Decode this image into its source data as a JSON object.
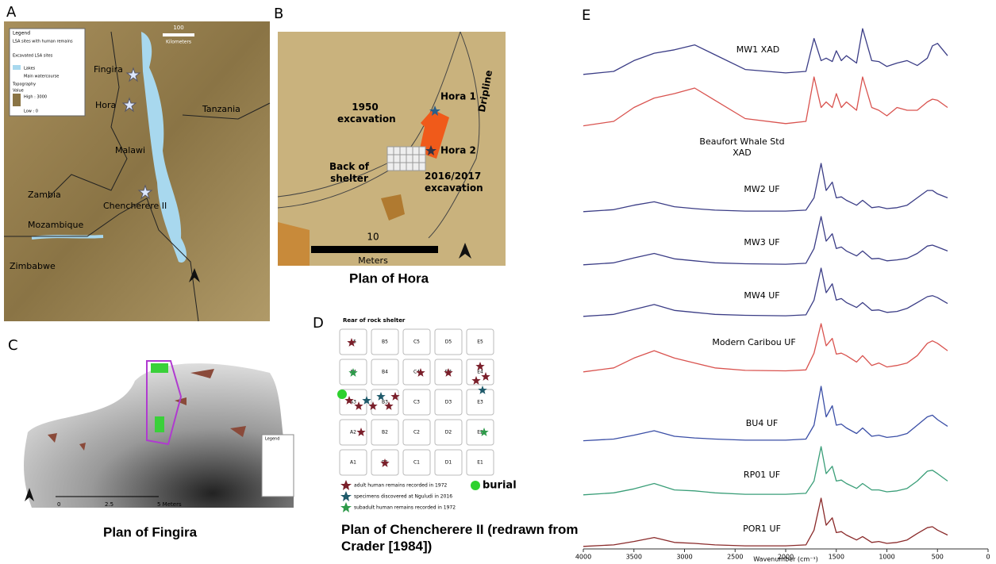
{
  "panels": {
    "A": {
      "letter": "A",
      "legend": [
        "Legend",
        "LSA sites with human remains",
        "Excavated LSA sites",
        "Lakes",
        "Main watercourse",
        "Topography",
        "Value",
        "High : 3000",
        "Low : 0"
      ],
      "scale": [
        "100",
        "Kilometers"
      ],
      "places": [
        "Fingira",
        "Hora",
        "Tanzania",
        "Malawi",
        "Zambia",
        "Chencherere II",
        "Mozambique",
        "Zimbabwe"
      ]
    },
    "B": {
      "letter": "B",
      "labels": [
        "Hora 1",
        "1950 excavation",
        "Dripline",
        "Hora 2",
        "Back of shelter",
        "2016/2017 excavation"
      ],
      "scale": [
        "10",
        "Meters"
      ],
      "caption": "Plan of Hora"
    },
    "C": {
      "letter": "C",
      "legend": "Legend",
      "scale": [
        "0",
        "2.5",
        "5 Meters"
      ],
      "caption": "Plan of Fingira"
    },
    "D": {
      "letter": "D",
      "header": "Rear of rock shelter",
      "grid": [
        [
          "A5",
          "B5",
          "C5",
          "D5",
          "E5"
        ],
        [
          "A4",
          "B4",
          "C4",
          "D4",
          "E4"
        ],
        [
          "A3",
          "B3",
          "C3",
          "D3",
          "E3"
        ],
        [
          "A2",
          "B2",
          "C2",
          "D2",
          "E2"
        ],
        [
          "A1",
          "B1",
          "C1",
          "D1",
          "E1"
        ]
      ],
      "legend": [
        "adult human remains recorded in 1972",
        "specimens discovered at Nguludi in 2016",
        "subadult human remains recorded in 1972"
      ],
      "burial": "burial",
      "caption": "Plan of Chencherere II (redrawn from Crader [1984])"
    },
    "E": {
      "letter": "E"
    }
  },
  "chart_data": {
    "type": "line",
    "xlabel": "Wavenumber (cm⁻¹)",
    "xlim": [
      4000,
      0
    ],
    "xticks": [
      4000,
      3500,
      3000,
      2500,
      2000,
      1500,
      1000,
      500,
      0
    ],
    "x": [
      4000,
      3700,
      3500,
      3300,
      3100,
      2900,
      2700,
      2400,
      2000,
      1800,
      1720,
      1650,
      1600,
      1540,
      1500,
      1450,
      1400,
      1300,
      1240,
      1150,
      1080,
      1000,
      900,
      800,
      700,
      600,
      550,
      500,
      400
    ],
    "series": [
      {
        "name": "MW1 XAD",
        "color": "#3b3d86",
        "values": [
          0.02,
          0.08,
          0.3,
          0.45,
          0.52,
          0.62,
          0.42,
          0.12,
          0.05,
          0.08,
          0.75,
          0.3,
          0.35,
          0.28,
          0.5,
          0.3,
          0.4,
          0.25,
          0.95,
          0.3,
          0.28,
          0.18,
          0.25,
          0.3,
          0.2,
          0.35,
          0.6,
          0.65,
          0.4
        ]
      },
      {
        "name": "Beaufort Whale Std XAD",
        "color": "#d9534f",
        "values": [
          0.02,
          0.1,
          0.35,
          0.52,
          0.6,
          0.7,
          0.48,
          0.15,
          0.06,
          0.1,
          0.9,
          0.35,
          0.45,
          0.35,
          0.6,
          0.35,
          0.45,
          0.3,
          0.9,
          0.35,
          0.3,
          0.2,
          0.35,
          0.3,
          0.3,
          0.45,
          0.5,
          0.48,
          0.35
        ]
      },
      {
        "name": "MW2 UF",
        "color": "#3b3d86",
        "values": [
          0.02,
          0.06,
          0.15,
          0.22,
          0.12,
          0.08,
          0.05,
          0.03,
          0.03,
          0.05,
          0.3,
          1.0,
          0.45,
          0.62,
          0.3,
          0.32,
          0.25,
          0.15,
          0.25,
          0.1,
          0.12,
          0.08,
          0.1,
          0.15,
          0.3,
          0.45,
          0.45,
          0.38,
          0.3
        ]
      },
      {
        "name": "MW3 UF",
        "color": "#3b3d86",
        "values": [
          0.02,
          0.06,
          0.16,
          0.25,
          0.14,
          0.1,
          0.06,
          0.04,
          0.03,
          0.05,
          0.35,
          1.0,
          0.5,
          0.65,
          0.35,
          0.38,
          0.3,
          0.2,
          0.3,
          0.14,
          0.15,
          0.1,
          0.12,
          0.15,
          0.25,
          0.4,
          0.42,
          0.38,
          0.3
        ]
      },
      {
        "name": "MW4 UF",
        "color": "#3b3d86",
        "values": [
          0.02,
          0.06,
          0.16,
          0.26,
          0.14,
          0.1,
          0.06,
          0.04,
          0.03,
          0.05,
          0.35,
          1.0,
          0.5,
          0.68,
          0.35,
          0.38,
          0.3,
          0.2,
          0.3,
          0.14,
          0.15,
          0.1,
          0.12,
          0.18,
          0.3,
          0.42,
          0.44,
          0.4,
          0.28
        ]
      },
      {
        "name": "Modern Caribou UF",
        "color": "#d9534f",
        "values": [
          0.02,
          0.1,
          0.3,
          0.45,
          0.3,
          0.2,
          0.1,
          0.05,
          0.04,
          0.06,
          0.4,
          1.0,
          0.55,
          0.7,
          0.38,
          0.4,
          0.35,
          0.22,
          0.35,
          0.15,
          0.2,
          0.12,
          0.15,
          0.2,
          0.35,
          0.6,
          0.65,
          0.6,
          0.45
        ]
      },
      {
        "name": "BU4 UF",
        "color": "#3a4ea6",
        "values": [
          0.02,
          0.05,
          0.12,
          0.2,
          0.1,
          0.07,
          0.05,
          0.03,
          0.03,
          0.05,
          0.3,
          1.0,
          0.45,
          0.65,
          0.3,
          0.32,
          0.25,
          0.15,
          0.25,
          0.1,
          0.12,
          0.08,
          0.1,
          0.15,
          0.3,
          0.45,
          0.48,
          0.4,
          0.28
        ]
      },
      {
        "name": "RP01 UF",
        "color": "#3a9e78",
        "values": [
          0.02,
          0.06,
          0.14,
          0.25,
          0.12,
          0.1,
          0.06,
          0.03,
          0.03,
          0.05,
          0.3,
          1.0,
          0.45,
          0.6,
          0.3,
          0.32,
          0.25,
          0.15,
          0.25,
          0.12,
          0.12,
          0.08,
          0.1,
          0.15,
          0.3,
          0.5,
          0.52,
          0.45,
          0.3
        ]
      },
      {
        "name": "POR1 UF",
        "color": "#8a2a2a",
        "values": [
          0.02,
          0.05,
          0.12,
          0.2,
          0.1,
          0.08,
          0.05,
          0.03,
          0.03,
          0.05,
          0.35,
          1.0,
          0.45,
          0.6,
          0.3,
          0.32,
          0.25,
          0.15,
          0.22,
          0.1,
          0.12,
          0.08,
          0.1,
          0.15,
          0.28,
          0.4,
          0.42,
          0.35,
          0.25
        ]
      }
    ]
  }
}
